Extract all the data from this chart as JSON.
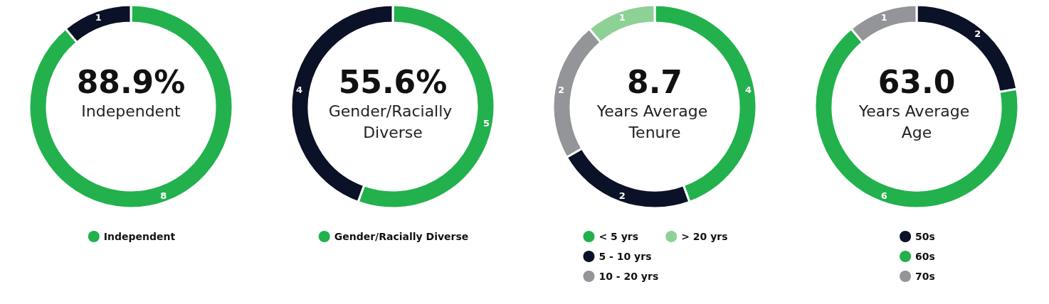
{
  "chart_data": [
    {
      "type": "donut",
      "title": "88.9%",
      "subtitle": "Independent",
      "categories": [
        "Independent",
        null
      ],
      "values": [
        8,
        1
      ],
      "colors": [
        "#22b14c",
        "#0b1126"
      ],
      "data_labels": true,
      "legend": "bottom"
    },
    {
      "type": "donut",
      "title": "55.6%",
      "subtitle": "Gender/Racially Diverse",
      "categories": [
        "Gender/Racially Diverse",
        null
      ],
      "values": [
        5,
        4
      ],
      "colors": [
        "#22b14c",
        "#0b1126"
      ],
      "data_labels": true,
      "legend": "bottom"
    },
    {
      "type": "donut",
      "title": "8.7",
      "subtitle": "Years Average Tenure",
      "categories": [
        "< 5 yrs",
        "5 - 10 yrs",
        "10 - 20 yrs",
        "> 20 yrs"
      ],
      "values": [
        4,
        2,
        2,
        1
      ],
      "colors": [
        "#22b14c",
        "#0b1126",
        "#939598",
        "#8dd197"
      ],
      "data_labels": true,
      "legend": "bottom"
    },
    {
      "type": "donut",
      "title": "63.0",
      "subtitle": "Years Average Age",
      "categories": [
        "50s",
        "60s",
        "70s"
      ],
      "values": [
        2,
        6,
        1
      ],
      "colors": [
        "#0b1126",
        "#22b14c",
        "#939598"
      ],
      "data_labels": true,
      "legend": "bottom"
    }
  ]
}
